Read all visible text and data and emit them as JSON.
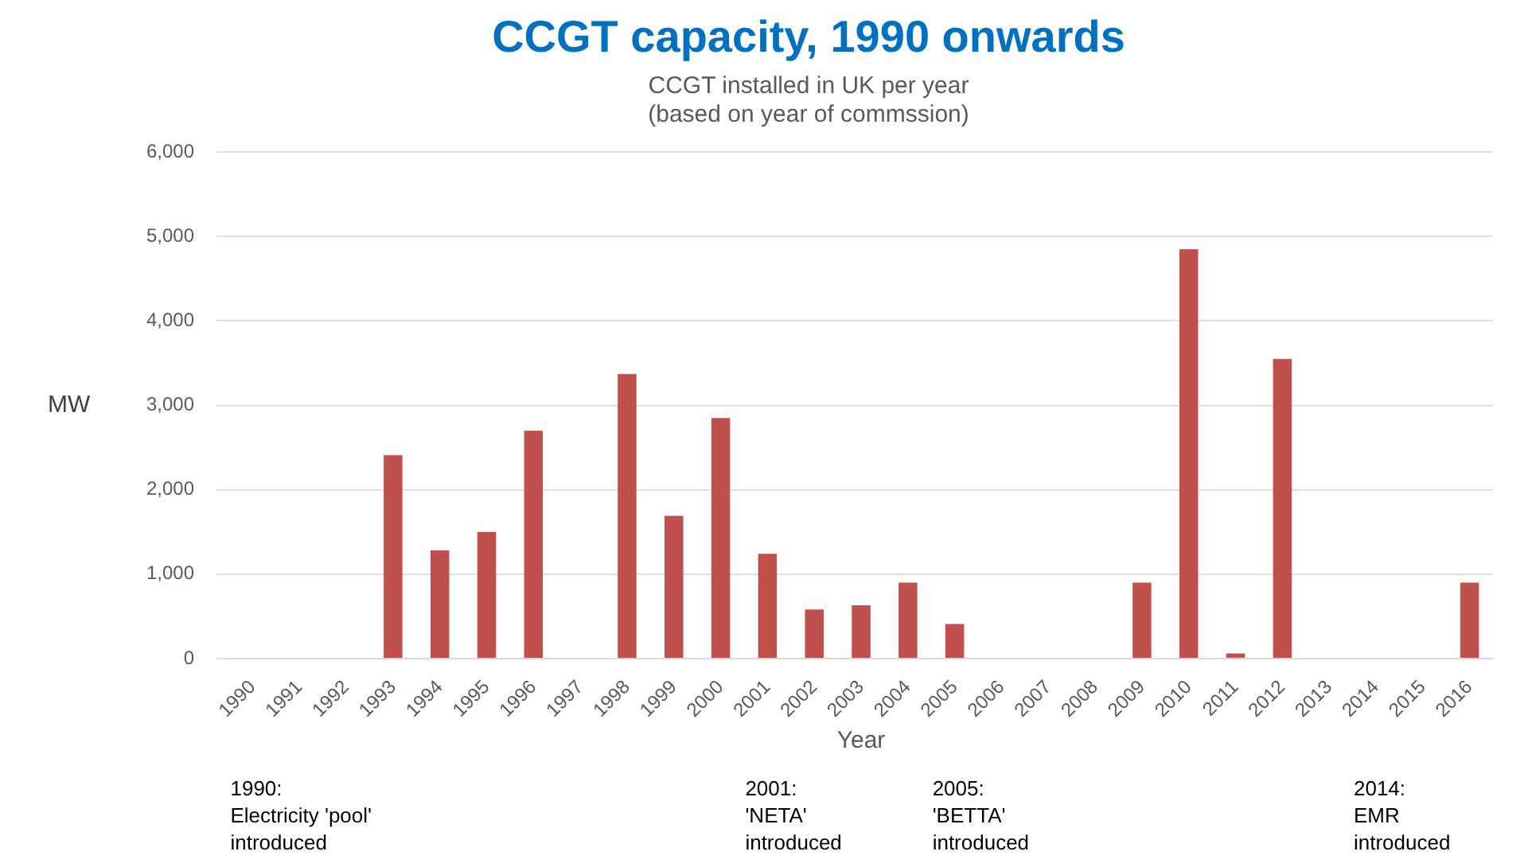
{
  "chart_data": {
    "type": "bar",
    "title": "CCGT capacity, 1990 onwards",
    "subtitle": "CCGT installed in UK per year\n(based on year of commssion)",
    "xlabel": "Year",
    "ylabel": "MW",
    "categories": [
      "1990",
      "1991",
      "1992",
      "1993",
      "1994",
      "1995",
      "1996",
      "1997",
      "1998",
      "1999",
      "2000",
      "2001",
      "2002",
      "2003",
      "2004",
      "2005",
      "2006",
      "2007",
      "2008",
      "2009",
      "2010",
      "2011",
      "2012",
      "2013",
      "2014",
      "2015",
      "2016"
    ],
    "values": [
      0,
      0,
      0,
      2410,
      1280,
      1500,
      2700,
      0,
      3370,
      1690,
      2850,
      1240,
      580,
      630,
      900,
      410,
      0,
      0,
      0,
      900,
      4850,
      60,
      3550,
      0,
      0,
      0,
      900
    ],
    "color": "#c0504d",
    "ylim": [
      0,
      6000
    ],
    "yticks": [
      0,
      {
        "value": 1000,
        "label": "1,000"
      },
      {
        "value": 2000,
        "label": "2,000"
      },
      {
        "value": 3000,
        "label": "3,000"
      },
      {
        "value": 4000,
        "label": "4,000"
      },
      {
        "value": 5000,
        "label": "5,000"
      },
      {
        "value": 6000,
        "label": "6,000"
      }
    ],
    "grid": "y",
    "legend": false,
    "annotations": [
      "1990:\nElectricity 'pool'\nintroduced",
      "2001:\n'NETA'\nintroduced",
      "2005:\n'BETTA'\nintroduced",
      "2014:\nEMR\nintroduced"
    ]
  }
}
